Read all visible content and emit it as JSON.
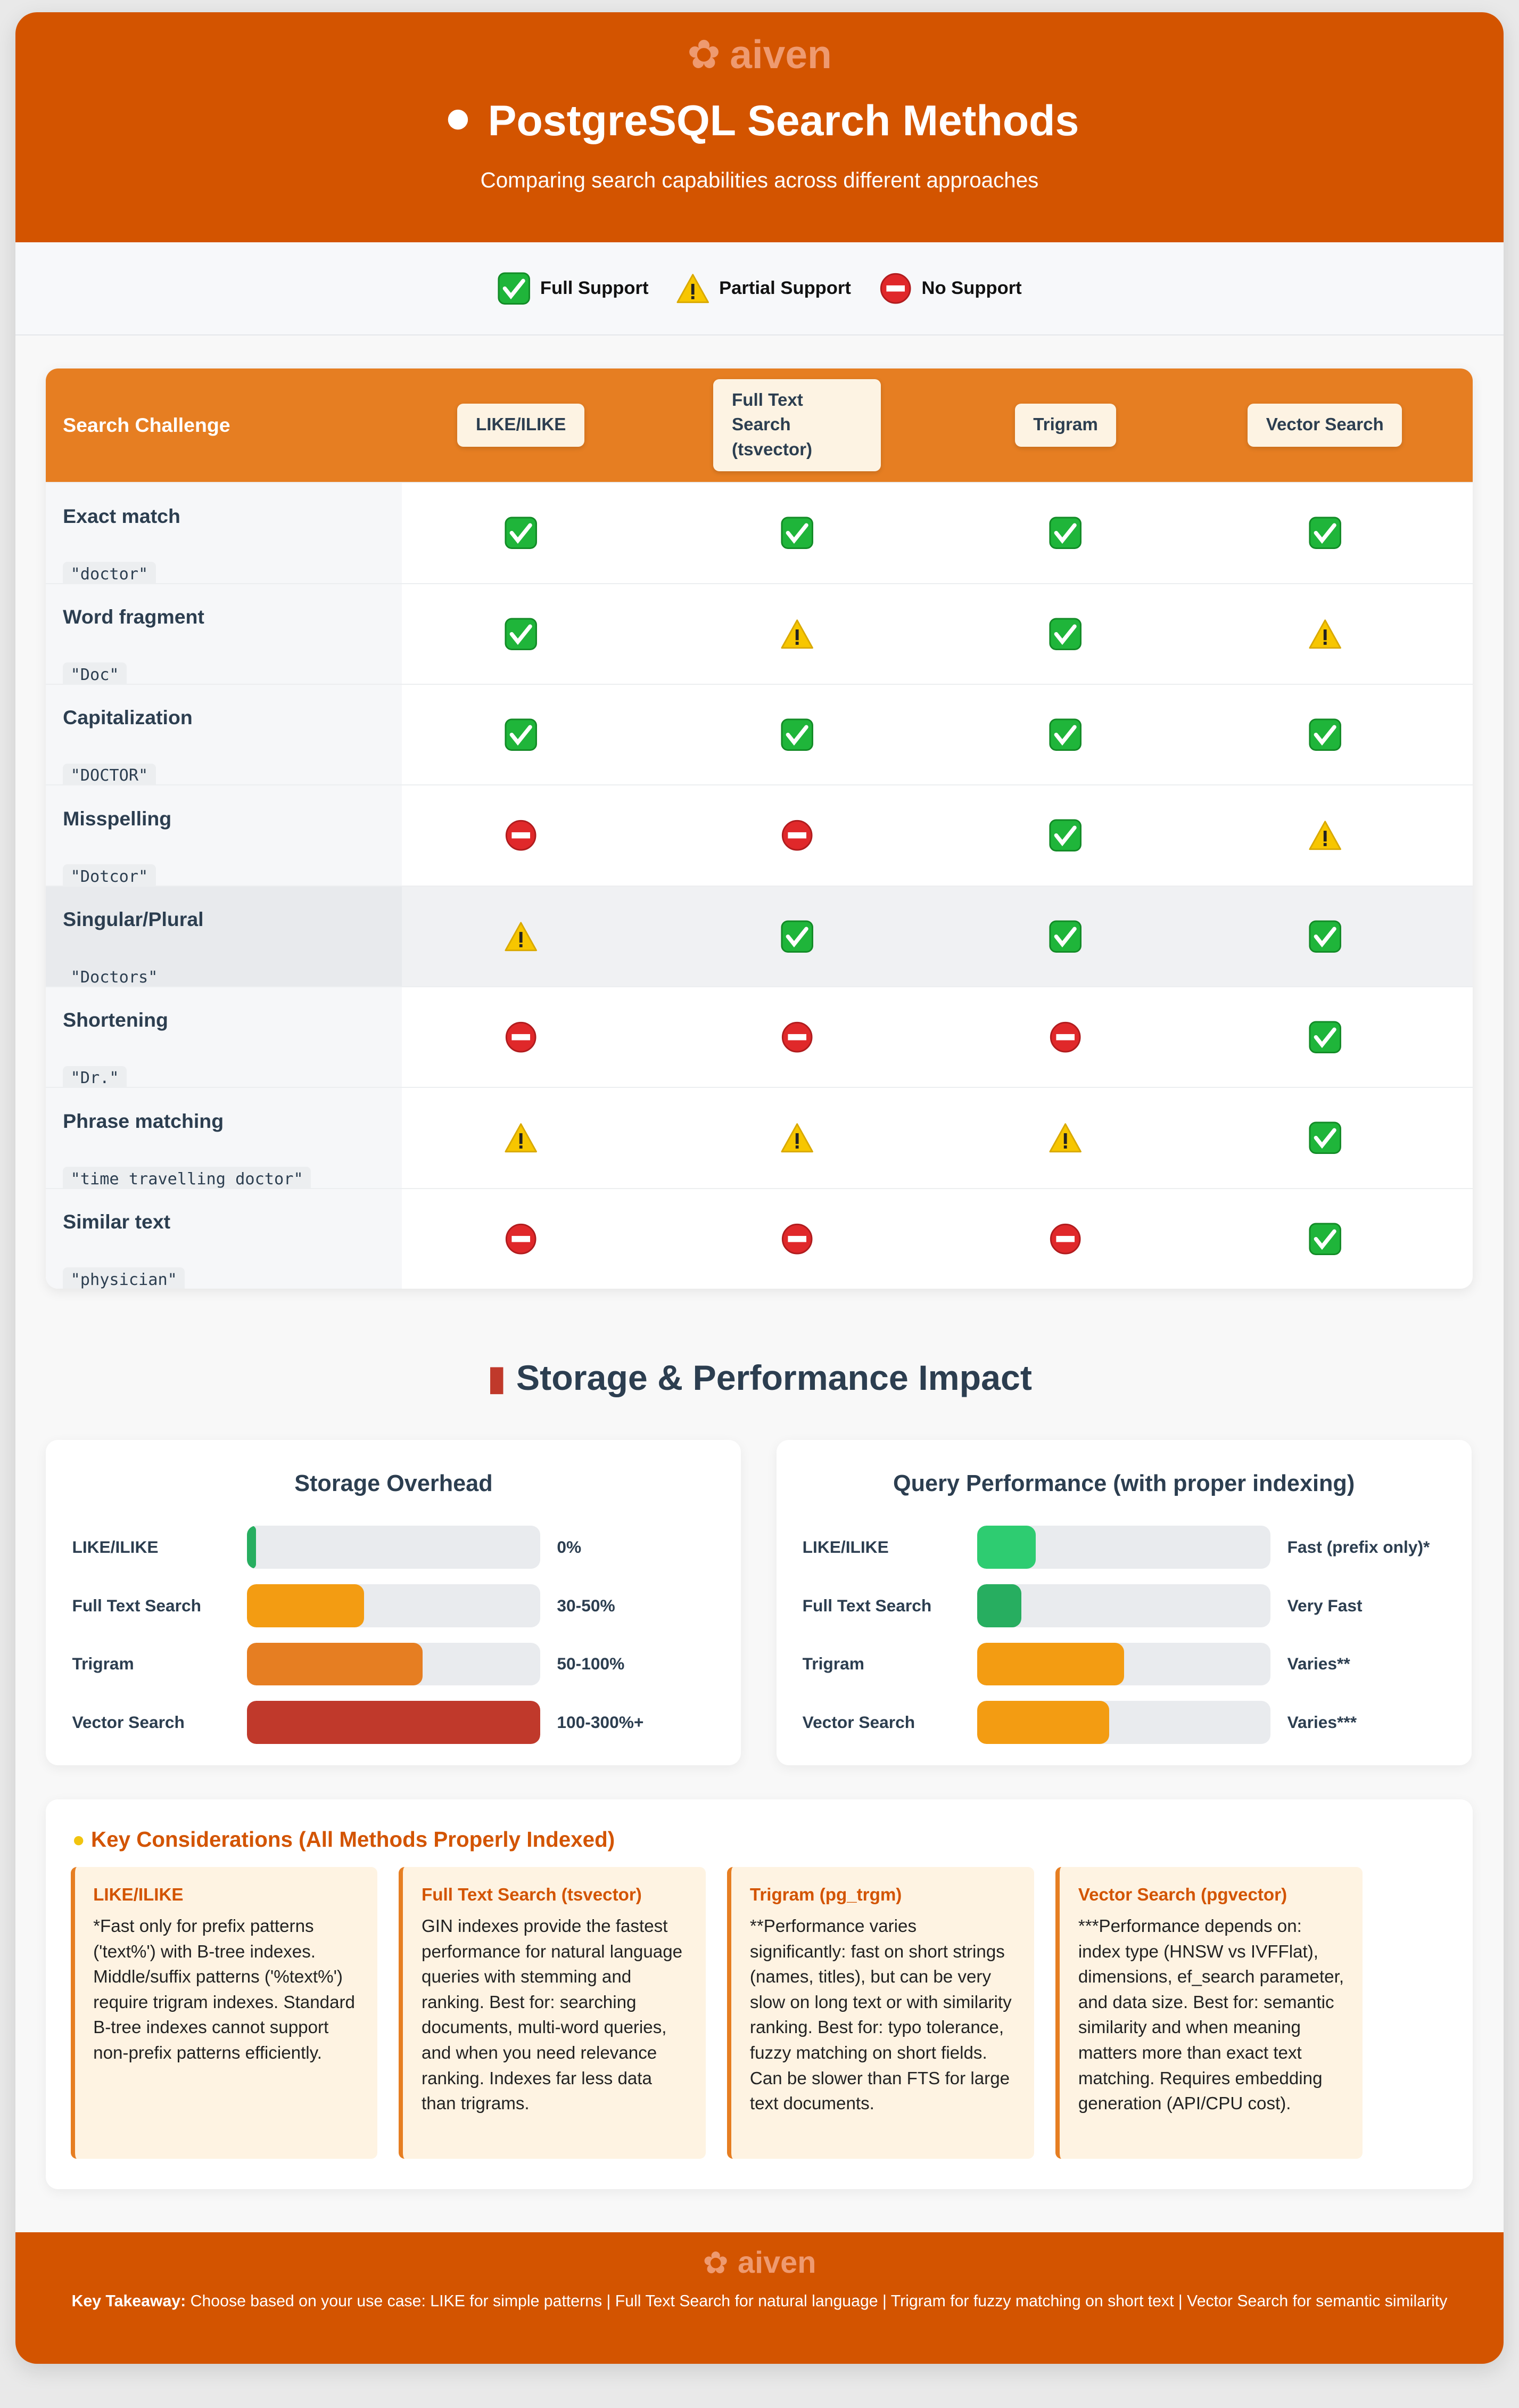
{
  "brand": "aiven",
  "header": {
    "title": "PostgreSQL Search Methods",
    "subtitle": "Comparing search capabilities across different approaches"
  },
  "legend": [
    {
      "icon": "full",
      "label": "Full Support"
    },
    {
      "icon": "partial",
      "label": "Partial Support"
    },
    {
      "icon": "none",
      "label": "No Support"
    }
  ],
  "table": {
    "corner": "Search Challenge",
    "methods": [
      "LIKE/ILIKE",
      "Full Text Search (tsvector)",
      "Trigram",
      "Vector Search"
    ],
    "rows": [
      {
        "challenge": "Exact match",
        "example": "\"doctor\"",
        "support": [
          "full",
          "full",
          "full",
          "full"
        ]
      },
      {
        "challenge": "Word fragment",
        "example": "\"Doc\"",
        "support": [
          "full",
          "partial",
          "full",
          "partial"
        ]
      },
      {
        "challenge": "Capitalization",
        "example": "\"DOCTOR\"",
        "support": [
          "full",
          "full",
          "full",
          "full"
        ]
      },
      {
        "challenge": "Misspelling",
        "example": "\"Dotcor\"",
        "support": [
          "none",
          "none",
          "full",
          "partial"
        ]
      },
      {
        "challenge": "Singular/Plural",
        "example": "\"Doctors\"",
        "support": [
          "partial",
          "full",
          "full",
          "full"
        ]
      },
      {
        "challenge": "Shortening",
        "example": "\"Dr.\"",
        "support": [
          "none",
          "none",
          "none",
          "full"
        ]
      },
      {
        "challenge": "Phrase matching",
        "example": "\"time travelling doctor\"",
        "support": [
          "partial",
          "partial",
          "partial",
          "full"
        ]
      },
      {
        "challenge": "Similar text",
        "example": "\"physician\"",
        "support": [
          "none",
          "none",
          "none",
          "full"
        ]
      }
    ]
  },
  "impact": {
    "title": "Storage & Performance Impact",
    "storage": {
      "title": "Storage Overhead",
      "bars": [
        {
          "label": "LIKE/ILIKE",
          "value": "0%",
          "fill": 0.03,
          "color": "#27ae60"
        },
        {
          "label": "Full Text Search",
          "value": "30-50%",
          "fill": 0.4,
          "color": "#f39c12"
        },
        {
          "label": "Trigram",
          "value": "50-100%",
          "fill": 0.6,
          "color": "#e67e22"
        },
        {
          "label": "Vector Search",
          "value": "100-300%+",
          "fill": 1.0,
          "color": "#c0392b"
        }
      ]
    },
    "performance": {
      "title": "Query Performance (with proper indexing)",
      "bars": [
        {
          "label": "LIKE/ILIKE",
          "value": "Fast (prefix only)*",
          "fill": 0.2,
          "color": "#2ecc71"
        },
        {
          "label": "Full Text Search",
          "value": "Very Fast",
          "fill": 0.15,
          "color": "#27ae60"
        },
        {
          "label": "Trigram",
          "value": "Varies**",
          "fill": 0.5,
          "color": "#f39c12"
        },
        {
          "label": "Vector Search",
          "value": "Varies***",
          "fill": 0.45,
          "color": "#f39c12"
        }
      ]
    }
  },
  "considerations": {
    "title": "Key Considerations (All Methods Properly Indexed)",
    "cards": [
      {
        "title": "LIKE/ILIKE",
        "text": "*Fast only for prefix patterns ('text%') with B-tree indexes. Middle/suffix patterns ('%text%') require trigram indexes. Standard B-tree indexes cannot support non-prefix patterns efficiently."
      },
      {
        "title": "Full Text Search (tsvector)",
        "text": "GIN indexes provide the fastest performance for natural language queries with stemming and ranking. Best for: searching documents, multi-word queries, and when you need relevance ranking. Indexes far less data than trigrams."
      },
      {
        "title": "Trigram (pg_trgm)",
        "text": "**Performance varies significantly: fast on short strings (names, titles), but can be very slow on long text or with similarity ranking. Best for: typo tolerance, fuzzy matching on short fields. Can be slower than FTS for large text documents."
      },
      {
        "title": "Vector Search (pgvector)",
        "text": "***Performance depends on: index type (HNSW vs IVFFlat), dimensions, ef_search parameter, and data size. Best for: semantic similarity and when meaning matters more than exact text matching. Requires embedding generation (API/CPU cost)."
      }
    ]
  },
  "footer": {
    "label": "Key Takeaway:",
    "text": " Choose based on your use case: LIKE for simple patterns | Full Text Search for natural language | Trigram for fuzzy matching on short text | Vector Search for semantic similarity"
  },
  "colors": {
    "primary": "#d35400",
    "accent": "#e67e22"
  }
}
